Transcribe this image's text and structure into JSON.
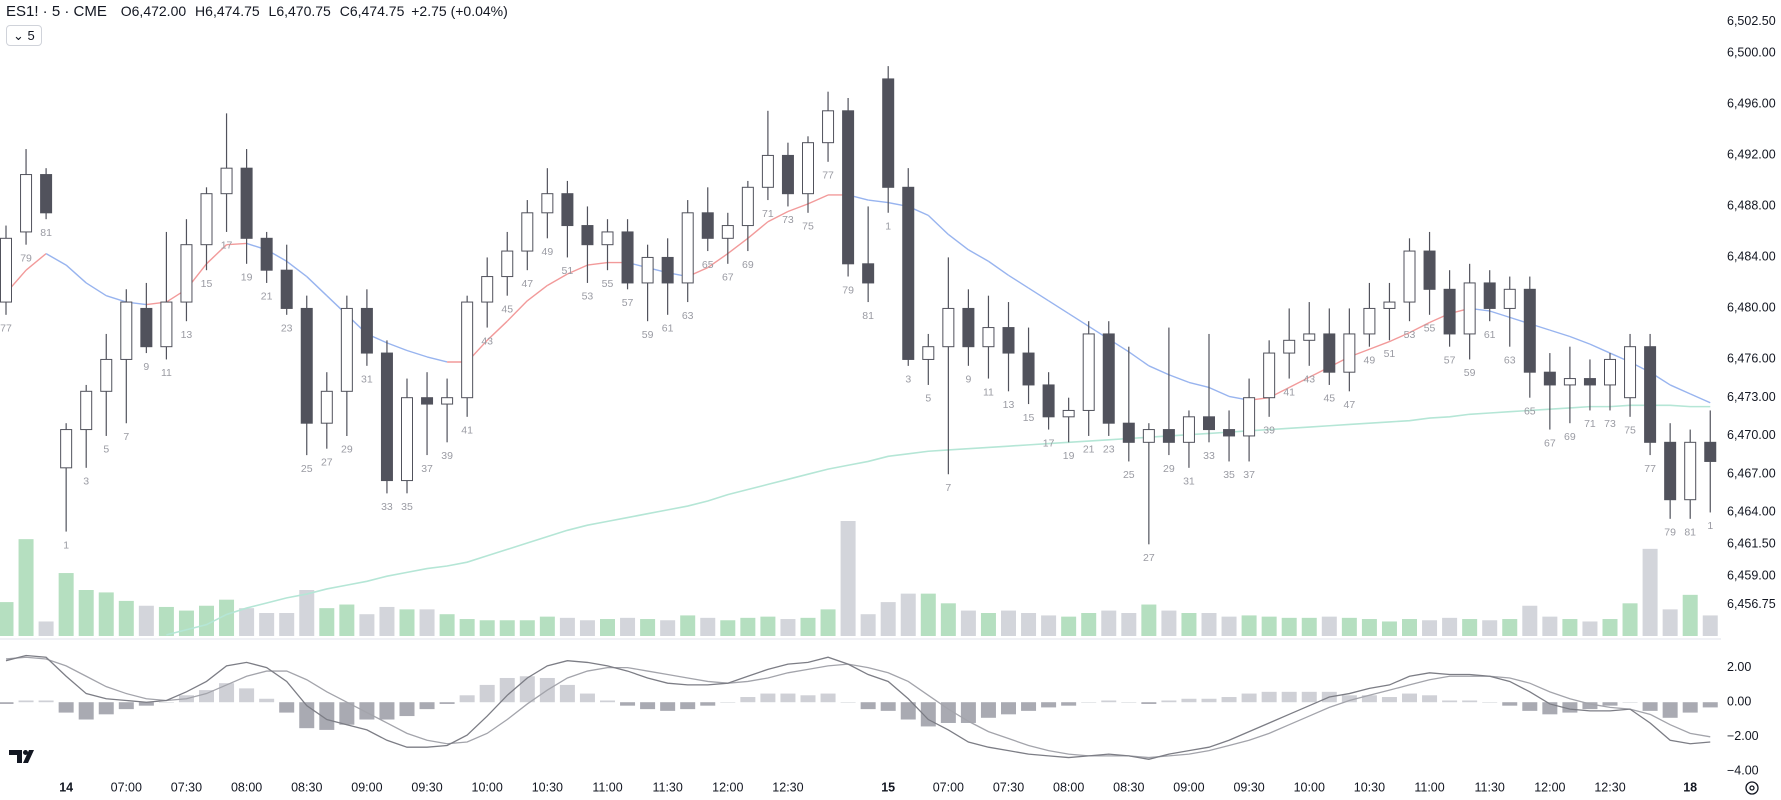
{
  "header": {
    "symbol": "ES1! · 5 · CME",
    "ohlc": [
      {
        "key": "O",
        "value": "6,472.00"
      },
      {
        "key": "H",
        "value": "6,474.75"
      },
      {
        "key": "L",
        "value": "6,470.75"
      },
      {
        "key": "C",
        "value": "6,474.75"
      }
    ],
    "change": "+2.75 (+0.04%)",
    "interval": "5"
  },
  "chart_data": [
    {
      "type": "candlestick",
      "categories": [
        null,
        null,
        null,
        "14",
        null,
        null,
        "07:00",
        null,
        null,
        "07:30",
        null,
        null,
        "08:00",
        null,
        null,
        "08:30",
        null,
        null,
        "09:00",
        null,
        null,
        "09:30",
        null,
        null,
        "10:00",
        null,
        null,
        "10:30",
        null,
        null,
        "11:00",
        null,
        null,
        "11:30",
        null,
        null,
        "12:00",
        null,
        null,
        "12:30",
        null,
        null,
        null,
        null,
        "15",
        null,
        null,
        "07:00",
        null,
        null,
        "07:30",
        null,
        null,
        "08:00",
        null,
        null,
        "08:30",
        null,
        null,
        "09:00",
        null,
        null,
        "09:30",
        null,
        null,
        "10:00",
        null,
        null,
        "10:30",
        null,
        null,
        "11:00",
        null,
        null,
        "11:30",
        null,
        null,
        "12:00",
        null,
        null,
        "12:30",
        null,
        null,
        null,
        "18",
        null
      ],
      "open": [
        6480.5,
        6486,
        6490.5,
        6467.5,
        6470.5,
        6473.5,
        6476,
        6480,
        6477,
        6480.5,
        6485,
        6489,
        6491,
        6485.5,
        6483,
        6480,
        6471,
        6473.5,
        6480,
        6476.5,
        6466.5,
        6473,
        6472.5,
        6473,
        6480.5,
        6482.5,
        6484.5,
        6487.5,
        6489,
        6486.5,
        6485,
        6486,
        6482,
        6484,
        6482,
        6487.5,
        6485.5,
        6486.5,
        6489.5,
        6492,
        6489,
        6493,
        6495.5,
        6483.5,
        6498,
        6489.5,
        6476,
        6477,
        6480,
        6477,
        6478.5,
        6476.5,
        6474,
        6471.5,
        6472,
        6478,
        6471,
        6469.5,
        6470.5,
        6469.5,
        6471.5,
        6470.5,
        6470,
        6473,
        6476.5,
        6477.5,
        6478,
        6475,
        6478,
        6480,
        6480.5,
        6484.5,
        6481.5,
        6478,
        6482,
        6480,
        6481.5,
        6475,
        6474,
        6474.5,
        6474,
        6473,
        6477,
        6469.5,
        6465,
        6469.5
      ],
      "high": [
        6486.5,
        6492.5,
        6491,
        6471,
        6474,
        6478,
        6481.5,
        6482,
        6486,
        6487,
        6489.5,
        6495.3,
        6492.5,
        6486,
        6485,
        6481,
        6475,
        6481,
        6481.5,
        6477.5,
        6474.5,
        6475,
        6474.5,
        6481,
        6484,
        6486,
        6488.5,
        6491,
        6490,
        6488,
        6487,
        6487,
        6485,
        6485.5,
        6488.5,
        6489.5,
        6487.5,
        6490,
        6495.5,
        6493,
        6493.5,
        6497,
        6496.5,
        6488,
        6499,
        6491,
        6478,
        6484,
        6481.5,
        6481,
        6480.5,
        6478.5,
        6475,
        6473,
        6479,
        6479,
        6477,
        6471,
        6478.5,
        6472,
        6478,
        6472,
        6474.5,
        6477.5,
        6480,
        6480.5,
        6480,
        6480,
        6482,
        6482,
        6485.5,
        6486,
        6483,
        6483.5,
        6483,
        6482.5,
        6482.5,
        6476.5,
        6477,
        6476,
        6476.5,
        6478,
        6478,
        6471,
        6470.5,
        6472
      ],
      "low": [
        6479.5,
        6485,
        6487,
        6462.5,
        6467.5,
        6470,
        6471,
        6476.5,
        6476,
        6479,
        6483,
        6486,
        6483.5,
        6482,
        6479.5,
        6468.5,
        6469,
        6470,
        6475.5,
        6465.5,
        6465.5,
        6468.5,
        6469.5,
        6471.5,
        6478.5,
        6481,
        6483,
        6485.5,
        6484,
        6482,
        6483,
        6481.5,
        6479,
        6479.5,
        6480.5,
        6484.5,
        6483.5,
        6484.5,
        6488.5,
        6488,
        6487.5,
        6491.5,
        6482.5,
        6480.5,
        6487.5,
        6475.5,
        6474,
        6467,
        6475.5,
        6474.5,
        6473.5,
        6472.5,
        6470.5,
        6469.5,
        6470,
        6470,
        6468,
        6461.5,
        6468.5,
        6467.5,
        6469.5,
        6468,
        6468,
        6471.5,
        6474.5,
        6475.5,
        6474,
        6473.5,
        6477,
        6477.5,
        6479,
        6479.5,
        6477,
        6476,
        6479,
        6477,
        6473,
        6470.5,
        6471,
        6472,
        6472,
        6471.5,
        6468.5,
        6463.5,
        6463.5,
        6464
      ],
      "close": [
        6485.5,
        6490.5,
        6487.5,
        6470.5,
        6473.5,
        6476,
        6480.5,
        6477,
        6480.5,
        6485,
        6489,
        6491,
        6485.5,
        6483,
        6480,
        6471,
        6473.5,
        6480,
        6476.5,
        6466.5,
        6473,
        6472.5,
        6473,
        6480.5,
        6482.5,
        6484.5,
        6487.5,
        6489,
        6486.5,
        6485,
        6486,
        6482,
        6484,
        6482,
        6487.5,
        6485.5,
        6486.5,
        6489.5,
        6492,
        6489,
        6493,
        6495.5,
        6483.5,
        6482,
        6489.5,
        6476,
        6477,
        6480,
        6477,
        6478.5,
        6476.5,
        6474,
        6471.5,
        6472,
        6478,
        6471,
        6469.5,
        6470.5,
        6469.5,
        6471.5,
        6470.5,
        6470,
        6473,
        6476.5,
        6477.5,
        6478,
        6475,
        6478,
        6480,
        6480.5,
        6484.5,
        6481.5,
        6478,
        6482,
        6480,
        6481.5,
        6475,
        6474,
        6474.5,
        6474,
        6476,
        6477,
        6469.5,
        6465,
        6469.5,
        6468
      ],
      "volume": [
        28,
        80,
        12,
        52,
        38,
        36,
        29,
        25,
        24,
        21,
        25,
        30,
        23,
        19,
        19,
        38,
        23,
        26,
        18,
        24,
        22,
        22,
        18,
        14,
        13,
        13,
        13,
        16,
        15,
        13,
        14,
        15,
        14,
        13,
        17,
        15,
        13,
        15,
        16,
        14,
        15,
        22,
        95,
        18,
        28,
        35,
        35,
        27,
        21,
        19,
        21,
        19,
        17,
        16,
        19,
        21,
        19,
        26,
        21,
        19,
        19,
        16,
        17,
        16,
        15,
        15,
        16,
        15,
        14,
        12,
        14,
        13,
        15,
        14,
        13,
        14,
        25,
        16,
        14,
        12,
        14,
        27,
        72,
        22,
        34,
        17
      ],
      "bar_numbers": [
        77,
        79,
        81,
        1,
        3,
        5,
        7,
        9,
        11,
        13,
        15,
        17,
        19,
        21,
        23,
        25,
        27,
        29,
        31,
        33,
        35,
        37,
        39,
        41,
        43,
        45,
        47,
        49,
        51,
        53,
        55,
        57,
        59,
        61,
        63,
        65,
        67,
        69,
        71,
        73,
        75,
        77,
        79,
        81,
        1,
        3,
        5,
        7,
        9,
        11,
        13,
        15,
        17,
        19,
        21,
        23,
        25,
        27,
        29,
        31,
        33,
        35,
        37,
        39,
        41,
        43,
        45,
        47,
        49,
        51,
        53,
        55,
        57,
        59,
        61,
        63,
        65,
        67,
        69,
        71,
        73,
        75,
        77,
        79,
        81,
        1
      ],
      "ma_fast": [
        6481.2,
        6483.0,
        6484.3,
        6483.4,
        6482.0,
        6481.0,
        6480.5,
        6480.3,
        6480.5,
        6481.5,
        6483.5,
        6485.0,
        6485.1,
        6484.6,
        6483.7,
        6482.5,
        6481.0,
        6479.5,
        6478.0,
        6477.3,
        6476.7,
        6476.2,
        6475.8,
        6475.8,
        6477.5,
        6479.0,
        6480.6,
        6481.8,
        6482.7,
        6483.4,
        6483.6,
        6483.6,
        6483.2,
        6482.8,
        6482.5,
        6483.2,
        6484.3,
        6485.5,
        6486.8,
        6487.6,
        6488.2,
        6488.9,
        6488.9,
        6488.5,
        6488.3,
        6488.0,
        6487.3,
        6485.8,
        6484.6,
        6483.7,
        6482.6,
        6481.6,
        6480.6,
        6479.6,
        6478.6,
        6477.6,
        6476.6,
        6475.5,
        6474.8,
        6474.2,
        6473.8,
        6473.1,
        6472.8,
        6473.0,
        6473.8,
        6474.6,
        6475.4,
        6476.2,
        6476.8,
        6477.4,
        6478.1,
        6478.9,
        6479.6,
        6480.0,
        6479.8,
        6479.3,
        6478.8,
        6478.3,
        6477.8,
        6477.2,
        6476.5,
        6475.8,
        6475.0,
        6474.0,
        6473.3,
        6472.6
      ],
      "ma_slow": [
        null,
        null,
        null,
        null,
        null,
        null,
        null,
        null,
        6454.4,
        6454.8,
        6455.2,
        6456.0,
        6456.5,
        6456.9,
        6457.3,
        6457.6,
        6458.0,
        6458.3,
        6458.6,
        6459.0,
        6459.3,
        6459.6,
        6459.8,
        6460.1,
        6460.6,
        6461.1,
        6461.6,
        6462.1,
        6462.6,
        6463.0,
        6463.3,
        6463.6,
        6463.9,
        6464.2,
        6464.5,
        6464.9,
        6465.4,
        6465.8,
        6466.2,
        6466.6,
        6467.0,
        6467.4,
        6467.7,
        6468.0,
        6468.4,
        6468.6,
        6468.8,
        6468.9,
        6469.0,
        6469.1,
        6469.2,
        6469.3,
        6469.4,
        6469.5,
        6469.6,
        6469.7,
        6469.8,
        6469.9,
        6470.0,
        6470.1,
        6470.2,
        6470.3,
        6470.4,
        6470.5,
        6470.6,
        6470.7,
        6470.8,
        6470.9,
        6471.0,
        6471.1,
        6471.2,
        6471.4,
        6471.5,
        6471.7,
        6471.8,
        6471.9,
        6472.0,
        6472.1,
        6472.2,
        6472.3,
        6472.3,
        6472.4,
        6472.4,
        6472.4,
        6472.3,
        6472.3
      ],
      "up_color": "#ffffff",
      "down_color": "#51525c",
      "wick_color": "#51525c",
      "volume_up_color": "#b5dfc0",
      "volume_down_color": "#d3d5db",
      "ma_rise_color": "#f29a9a",
      "ma_fall_color": "#98b4ef",
      "ma_slow_color": "#b5e6d6",
      "ylim": [
        6454.31,
        6504.19
      ],
      "yticks": [
        {
          "value": 6502.5,
          "label": "6,502.50"
        },
        {
          "value": 6500,
          "label": "6,500.00"
        },
        {
          "value": 6496,
          "label": "6,496.00"
        },
        {
          "value": 6492,
          "label": "6,492.00"
        },
        {
          "value": 6488,
          "label": "6,488.00"
        },
        {
          "value": 6484,
          "label": "6,484.00"
        },
        {
          "value": 6480,
          "label": "6,480.00"
        },
        {
          "value": 6476,
          "label": "6,476.00"
        },
        {
          "value": 6473,
          "label": "6,473.00"
        },
        {
          "value": 6470,
          "label": "6,470.00"
        },
        {
          "value": 6467,
          "label": "6,467.00"
        },
        {
          "value": 6464,
          "label": "6,464.00"
        },
        {
          "value": 6461.5,
          "label": "6,461.50"
        },
        {
          "value": 6459,
          "label": "6,459.00"
        },
        {
          "value": 6456.75,
          "label": "6,456.75"
        }
      ]
    },
    {
      "type": "macd",
      "macd": [
        2.4,
        2.7,
        2.6,
        1.5,
        0.5,
        0.2,
        0.1,
        0,
        0.1,
        0.6,
        1.2,
        2.1,
        2.3,
        2.0,
        1.2,
        -0.2,
        -1.0,
        -1.3,
        -1.6,
        -2.2,
        -2.6,
        -2.6,
        -2.5,
        -1.9,
        -0.8,
        0.4,
        1.4,
        2.1,
        2.4,
        2.3,
        2.1,
        1.8,
        1.4,
        1.1,
        1.0,
        1.0,
        1.1,
        1.5,
        1.9,
        2.2,
        2.3,
        2.6,
        2.2,
        1.6,
        1.2,
        0.2,
        -1.0,
        -1.6,
        -2.3,
        -2.6,
        -2.8,
        -3.0,
        -3.1,
        -3.2,
        -3.1,
        -3.0,
        -3.1,
        -3.3,
        -3.0,
        -2.8,
        -2.6,
        -2.2,
        -1.7,
        -1.2,
        -0.7,
        -0.2,
        0.3,
        0.5,
        0.8,
        1.0,
        1.5,
        1.7,
        1.6,
        1.6,
        1.5,
        1.2,
        0.6,
        -0.1,
        -0.4,
        -0.5,
        -0.5,
        -0.4,
        -1.2,
        -2.2,
        -2.4,
        -2.3
      ],
      "signal": [
        2.5,
        2.6,
        2.5,
        2.1,
        1.5,
        0.9,
        0.5,
        0.2,
        0.1,
        0.2,
        0.5,
        1.0,
        1.5,
        1.8,
        1.8,
        1.3,
        0.6,
        0,
        -0.6,
        -1.2,
        -1.8,
        -2.2,
        -2.4,
        -2.3,
        -1.8,
        -1.0,
        -0.1,
        0.7,
        1.4,
        1.8,
        2.0,
        2.0,
        1.8,
        1.6,
        1.4,
        1.2,
        1.1,
        1.2,
        1.4,
        1.7,
        1.9,
        2.1,
        2.2,
        2.0,
        1.7,
        1.2,
        0.4,
        -0.4,
        -1.1,
        -1.7,
        -2.1,
        -2.5,
        -2.8,
        -3.0,
        -3.1,
        -3.1,
        -3.1,
        -3.2,
        -3.1,
        -3.0,
        -2.8,
        -2.5,
        -2.2,
        -1.8,
        -1.3,
        -0.8,
        -0.3,
        0.1,
        0.4,
        0.7,
        1.0,
        1.3,
        1.5,
        1.5,
        1.5,
        1.4,
        1.1,
        0.6,
        0.2,
        -0.1,
        -0.3,
        -0.4,
        -0.7,
        -1.3,
        -1.8,
        -2.0
      ],
      "histogram": [
        -0.1,
        0.1,
        0.1,
        -0.6,
        -1.0,
        -0.7,
        -0.4,
        -0.2,
        0,
        0.4,
        0.7,
        1.1,
        0.8,
        0.2,
        -0.6,
        -1.5,
        -1.6,
        -1.3,
        -1.0,
        -1.0,
        -0.8,
        -0.4,
        -0.1,
        0.4,
        1.0,
        1.4,
        1.5,
        1.4,
        1.0,
        0.5,
        0.1,
        -0.2,
        -0.4,
        -0.5,
        -0.4,
        -0.2,
        0,
        0.3,
        0.5,
        0.5,
        0.4,
        0.5,
        0,
        -0.4,
        -0.5,
        -1.0,
        -1.4,
        -1.2,
        -1.2,
        -0.9,
        -0.7,
        -0.5,
        -0.3,
        -0.2,
        0,
        0.1,
        0,
        -0.1,
        0.1,
        0.2,
        0.2,
        0.3,
        0.5,
        0.6,
        0.6,
        0.6,
        0.6,
        0.4,
        0.4,
        0.3,
        0.5,
        0.4,
        0.1,
        0.1,
        0,
        -0.2,
        -0.5,
        -0.7,
        -0.6,
        -0.4,
        -0.2,
        0,
        -0.5,
        -0.9,
        -0.6,
        -0.3
      ],
      "macd_color": "#7c7d85",
      "signal_color": "#a3a4ab",
      "hist_pos_color": "#cfd0d6",
      "hist_neg_color": "#a9aab2",
      "ylim": [
        -4.38,
        3.48
      ],
      "yticks": [
        {
          "value": 2,
          "label": "2.00"
        },
        {
          "value": 0,
          "label": "0.00"
        },
        {
          "value": -2,
          "label": "−2.00"
        },
        {
          "value": -4,
          "label": "−4.00"
        }
      ]
    }
  ]
}
